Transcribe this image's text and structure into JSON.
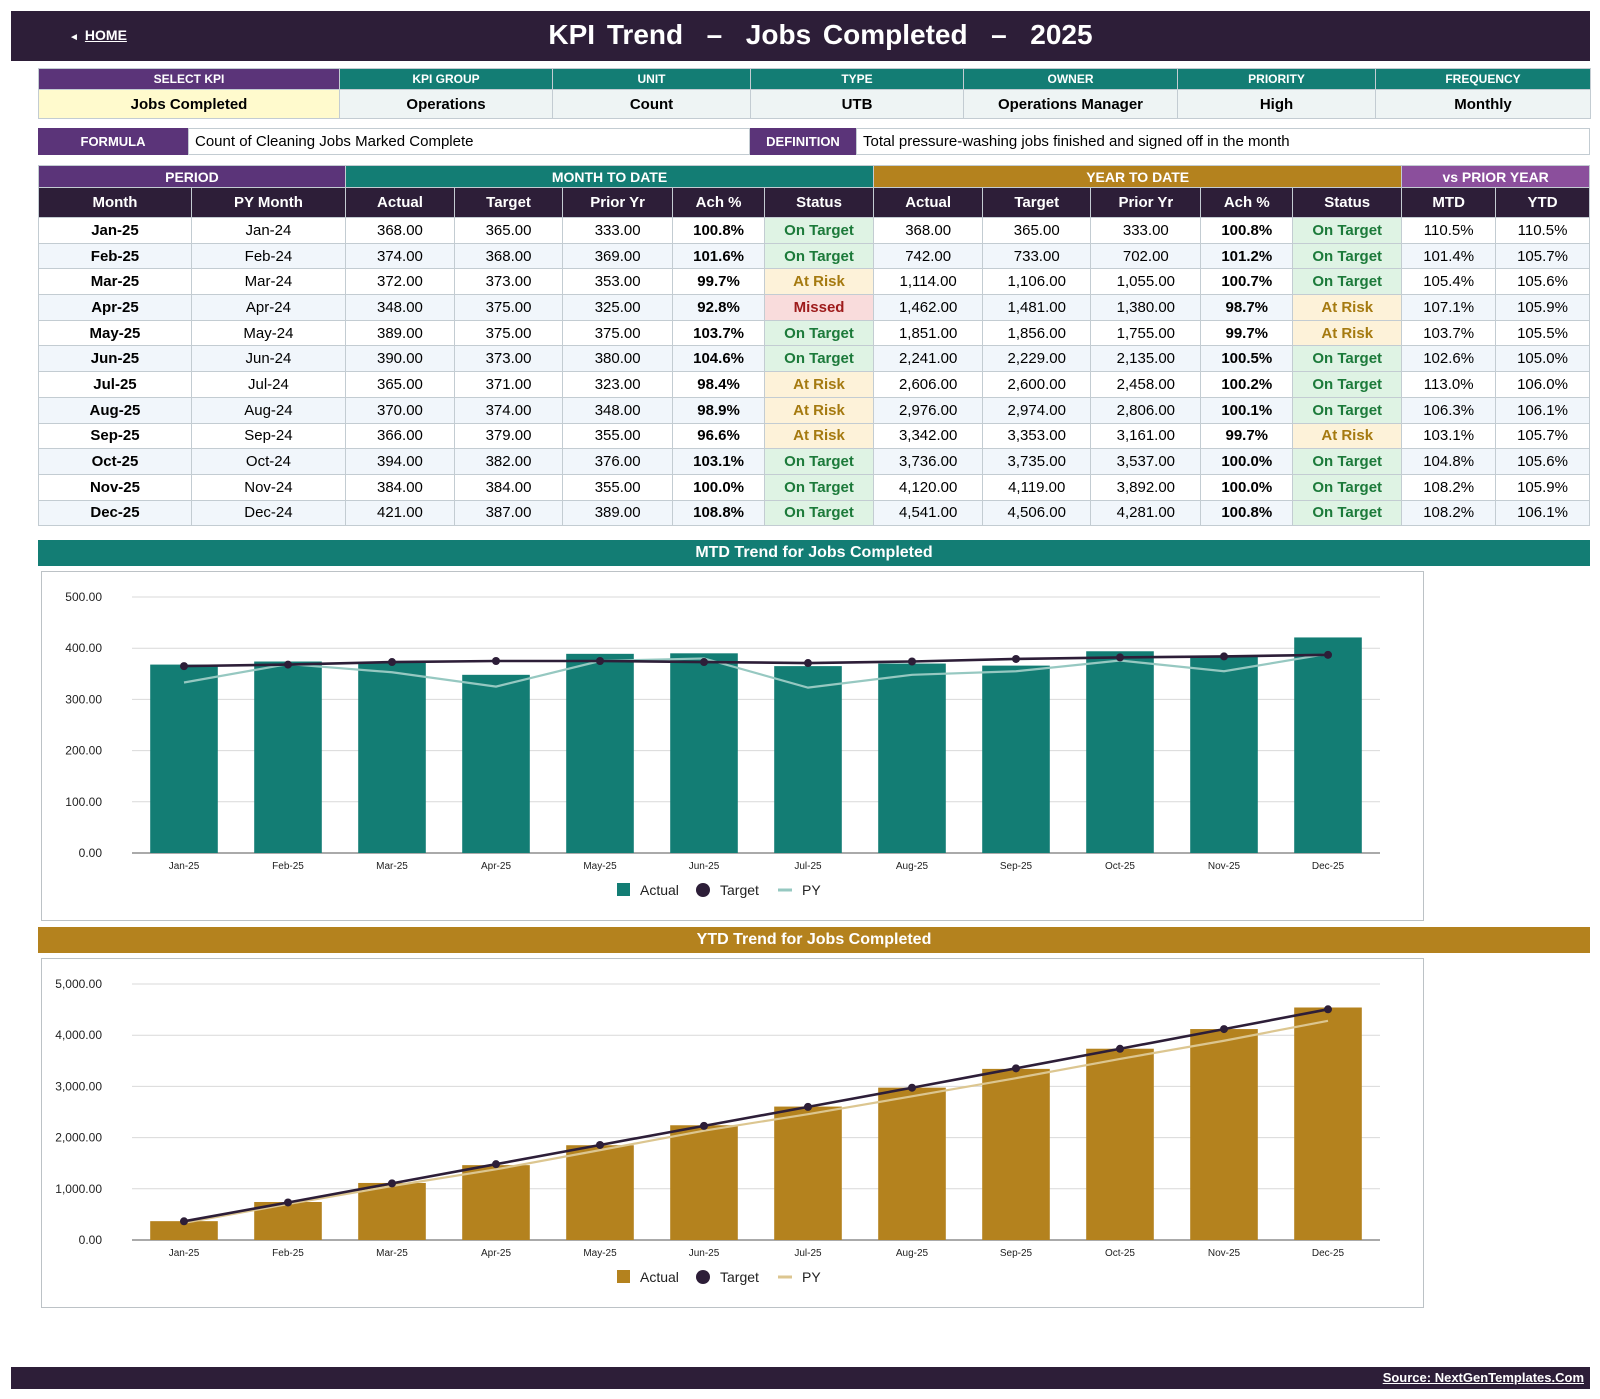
{
  "header": {
    "home_label": "HOME",
    "title": "KPI Trend  –  Jobs Completed  –  2025"
  },
  "meta": {
    "headers": [
      "SELECT KPI",
      "KPI GROUP",
      "UNIT",
      "TYPE",
      "OWNER",
      "PRIORITY",
      "FREQUENCY"
    ],
    "values": [
      "Jobs Completed",
      "Operations",
      "Count",
      "UTB",
      "Operations Manager",
      "High",
      "Monthly"
    ],
    "formula_label": "FORMULA",
    "formula_text": "Count of Cleaning Jobs Marked Complete",
    "definition_label": "DEFINITION",
    "definition_text": "Total pressure-washing jobs finished and signed off in the month"
  },
  "table": {
    "groups": [
      "PERIOD",
      "MONTH TO DATE",
      "YEAR TO DATE",
      "vs PRIOR YEAR"
    ],
    "columns": [
      "Month",
      "PY Month",
      "Actual",
      "Target",
      "Prior Yr",
      "Ach %",
      "Status",
      "Actual",
      "Target",
      "Prior Yr",
      "Ach %",
      "Status",
      "MTD",
      "YTD"
    ],
    "rows": [
      [
        "Jan-25",
        "Jan-24",
        "368.00",
        "365.00",
        "333.00",
        "100.8%",
        "On Target",
        "368.00",
        "365.00",
        "333.00",
        "100.8%",
        "On Target",
        "110.5%",
        "110.5%"
      ],
      [
        "Feb-25",
        "Feb-24",
        "374.00",
        "368.00",
        "369.00",
        "101.6%",
        "On Target",
        "742.00",
        "733.00",
        "702.00",
        "101.2%",
        "On Target",
        "101.4%",
        "105.7%"
      ],
      [
        "Mar-25",
        "Mar-24",
        "372.00",
        "373.00",
        "353.00",
        "99.7%",
        "At Risk",
        "1,114.00",
        "1,106.00",
        "1,055.00",
        "100.7%",
        "On Target",
        "105.4%",
        "105.6%"
      ],
      [
        "Apr-25",
        "Apr-24",
        "348.00",
        "375.00",
        "325.00",
        "92.8%",
        "Missed",
        "1,462.00",
        "1,481.00",
        "1,380.00",
        "98.7%",
        "At Risk",
        "107.1%",
        "105.9%"
      ],
      [
        "May-25",
        "May-24",
        "389.00",
        "375.00",
        "375.00",
        "103.7%",
        "On Target",
        "1,851.00",
        "1,856.00",
        "1,755.00",
        "99.7%",
        "At Risk",
        "103.7%",
        "105.5%"
      ],
      [
        "Jun-25",
        "Jun-24",
        "390.00",
        "373.00",
        "380.00",
        "104.6%",
        "On Target",
        "2,241.00",
        "2,229.00",
        "2,135.00",
        "100.5%",
        "On Target",
        "102.6%",
        "105.0%"
      ],
      [
        "Jul-25",
        "Jul-24",
        "365.00",
        "371.00",
        "323.00",
        "98.4%",
        "At Risk",
        "2,606.00",
        "2,600.00",
        "2,458.00",
        "100.2%",
        "On Target",
        "113.0%",
        "106.0%"
      ],
      [
        "Aug-25",
        "Aug-24",
        "370.00",
        "374.00",
        "348.00",
        "98.9%",
        "At Risk",
        "2,976.00",
        "2,974.00",
        "2,806.00",
        "100.1%",
        "On Target",
        "106.3%",
        "106.1%"
      ],
      [
        "Sep-25",
        "Sep-24",
        "366.00",
        "379.00",
        "355.00",
        "96.6%",
        "At Risk",
        "3,342.00",
        "3,353.00",
        "3,161.00",
        "99.7%",
        "At Risk",
        "103.1%",
        "105.7%"
      ],
      [
        "Oct-25",
        "Oct-24",
        "394.00",
        "382.00",
        "376.00",
        "103.1%",
        "On Target",
        "3,736.00",
        "3,735.00",
        "3,537.00",
        "100.0%",
        "On Target",
        "104.8%",
        "105.6%"
      ],
      [
        "Nov-25",
        "Nov-24",
        "384.00",
        "384.00",
        "355.00",
        "100.0%",
        "On Target",
        "4,120.00",
        "4,119.00",
        "3,892.00",
        "100.0%",
        "On Target",
        "108.2%",
        "105.9%"
      ],
      [
        "Dec-25",
        "Dec-24",
        "421.00",
        "387.00",
        "389.00",
        "108.8%",
        "On Target",
        "4,541.00",
        "4,506.00",
        "4,281.00",
        "100.8%",
        "On Target",
        "108.2%",
        "106.1%"
      ]
    ]
  },
  "colors": {
    "purple": "#5b3479",
    "teal": "#137d74",
    "gold": "#b4821e",
    "dark": "#2d1e38",
    "mauve": "#8b4f9c",
    "py_teal": "#96c8c1",
    "py_gold": "#dcc690"
  },
  "chart_data": [
    {
      "type": "bar",
      "title": "MTD Trend for Jobs Completed",
      "categories": [
        "Jan-25",
        "Feb-25",
        "Mar-25",
        "Apr-25",
        "May-25",
        "Jun-25",
        "Jul-25",
        "Aug-25",
        "Sep-25",
        "Oct-25",
        "Nov-25",
        "Dec-25"
      ],
      "series": [
        {
          "name": "Actual",
          "kind": "bar",
          "values": [
            368,
            374,
            372,
            348,
            389,
            390,
            365,
            370,
            366,
            394,
            384,
            421
          ]
        },
        {
          "name": "Target",
          "kind": "line-markers",
          "values": [
            365,
            368,
            373,
            375,
            375,
            373,
            371,
            374,
            379,
            382,
            384,
            387
          ]
        },
        {
          "name": "PY",
          "kind": "line",
          "values": [
            333,
            369,
            353,
            325,
            375,
            380,
            323,
            348,
            355,
            376,
            355,
            389
          ]
        }
      ],
      "ylim": [
        0,
        500
      ],
      "yticks": [
        "0.00",
        "100.00",
        "200.00",
        "300.00",
        "400.00",
        "500.00"
      ],
      "legend": "bottom",
      "grid": true
    },
    {
      "type": "bar",
      "title": "YTD Trend for Jobs Completed",
      "categories": [
        "Jan-25",
        "Feb-25",
        "Mar-25",
        "Apr-25",
        "May-25",
        "Jun-25",
        "Jul-25",
        "Aug-25",
        "Sep-25",
        "Oct-25",
        "Nov-25",
        "Dec-25"
      ],
      "series": [
        {
          "name": "Actual",
          "kind": "bar",
          "values": [
            368,
            742,
            1114,
            1462,
            1851,
            2241,
            2606,
            2976,
            3342,
            3736,
            4120,
            4541
          ]
        },
        {
          "name": "Target",
          "kind": "line-markers",
          "values": [
            365,
            733,
            1106,
            1481,
            1856,
            2229,
            2600,
            2974,
            3353,
            3735,
            4119,
            4506
          ]
        },
        {
          "name": "PY",
          "kind": "line",
          "values": [
            333,
            702,
            1055,
            1380,
            1755,
            2135,
            2458,
            2806,
            3161,
            3537,
            3892,
            4281
          ]
        }
      ],
      "ylim": [
        0,
        5000
      ],
      "yticks": [
        "0.00",
        "1,000.00",
        "2,000.00",
        "3,000.00",
        "4,000.00",
        "5,000.00"
      ],
      "legend": "bottom",
      "grid": true
    }
  ],
  "footer": {
    "source": "Source: NextGenTemplates.Com"
  }
}
